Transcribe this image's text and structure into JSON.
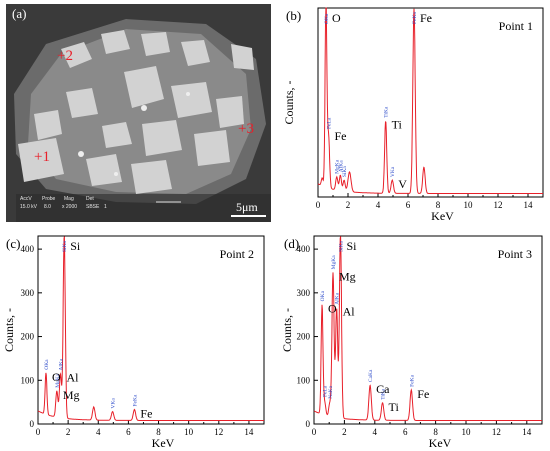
{
  "panel_a": {
    "label": "(a)",
    "markers": [
      "+2",
      "+3",
      "+1"
    ],
    "info": [
      "AccV",
      "Probe",
      "Mag",
      "Det",
      "15.0 kV",
      "8.0",
      "x 2000",
      "SBSE",
      "1"
    ],
    "scale_bar": "5μm",
    "colors": {
      "marker": "#e8202a",
      "background": "#3a3a3a"
    }
  },
  "chart_data": [
    {
      "type": "line",
      "panel_label": "(b)",
      "title": "Point 1",
      "xlabel": "KeV",
      "ylabel": "Counts, -",
      "xlim": [
        0,
        15
      ],
      "ylim": [
        0,
        430
      ],
      "xticks": [
        "0",
        "2",
        "4",
        "6",
        "8",
        "10",
        "12",
        "14"
      ],
      "yticks": [],
      "peaks": [
        {
          "x": 0.28,
          "y": 18,
          "w": 0.06
        },
        {
          "x": 0.53,
          "y": 420,
          "w": 0.06
        },
        {
          "x": 0.7,
          "y": 120,
          "w": 0.07
        },
        {
          "x": 1.25,
          "y": 30,
          "w": 0.07
        },
        {
          "x": 1.49,
          "y": 35,
          "w": 0.07
        },
        {
          "x": 1.74,
          "y": 25,
          "w": 0.07
        },
        {
          "x": 2.1,
          "y": 45,
          "w": 0.1
        },
        {
          "x": 4.51,
          "y": 165,
          "w": 0.07
        },
        {
          "x": 4.95,
          "y": 30,
          "w": 0.08
        },
        {
          "x": 6.4,
          "y": 420,
          "w": 0.08
        },
        {
          "x": 7.06,
          "y": 60,
          "w": 0.08
        }
      ],
      "line_labels": [
        {
          "text": "OKa",
          "x": 0.53
        },
        {
          "text": "FeLa",
          "x": 0.7
        },
        {
          "text": "MgKa",
          "x": 1.25
        },
        {
          "text": "AlKa",
          "x": 1.49
        },
        {
          "text": "SiKa",
          "x": 1.74
        },
        {
          "text": "TiKa",
          "x": 4.51
        },
        {
          "text": "VKa",
          "x": 4.95
        },
        {
          "text": "FeKa",
          "x": 6.4
        }
      ],
      "elements": [
        {
          "text": "O",
          "x": 0.53
        },
        {
          "text": "Fe",
          "x": 0.7
        },
        {
          "text": "Ti",
          "x": 4.51
        },
        {
          "text": "V",
          "x": 4.95
        },
        {
          "text": "Fe",
          "x": 6.4
        }
      ],
      "color": "#e8202a"
    },
    {
      "type": "line",
      "panel_label": "(c)",
      "title": "Point 2",
      "xlabel": "KeV",
      "ylabel": "Counts, -",
      "xlim": [
        0,
        15
      ],
      "ylim": [
        0,
        430
      ],
      "xticks": [
        "0",
        "2",
        "4",
        "6",
        "8",
        "10",
        "12",
        "14"
      ],
      "yticks": [
        "0",
        "100",
        "200",
        "300",
        "400"
      ],
      "peaks": [
        {
          "x": 0.53,
          "y": 95,
          "w": 0.06
        },
        {
          "x": 1.25,
          "y": 60,
          "w": 0.07
        },
        {
          "x": 1.49,
          "y": 100,
          "w": 0.07
        },
        {
          "x": 1.74,
          "y": 420,
          "w": 0.07
        },
        {
          "x": 3.7,
          "y": 30,
          "w": 0.08
        },
        {
          "x": 4.95,
          "y": 20,
          "w": 0.08
        },
        {
          "x": 6.4,
          "y": 25,
          "w": 0.08
        }
      ],
      "line_labels": [
        {
          "text": "OKa",
          "x": 0.53
        },
        {
          "text": "MgKa",
          "x": 1.25
        },
        {
          "text": "AlKa",
          "x": 1.49
        },
        {
          "text": "SiKa",
          "x": 1.74
        },
        {
          "text": "VKa",
          "x": 4.95
        },
        {
          "text": "FeKa",
          "x": 6.4
        }
      ],
      "elements": [
        {
          "text": "O",
          "x": 0.53
        },
        {
          "text": "Mg",
          "x": 1.25
        },
        {
          "text": "Al",
          "x": 1.49
        },
        {
          "text": "Si",
          "x": 1.74
        },
        {
          "text": "Fe",
          "x": 6.4
        }
      ],
      "color": "#e8202a"
    },
    {
      "type": "line",
      "panel_label": "(d)",
      "title": "Point 3",
      "xlabel": "KeV",
      "ylabel": "Counts, -",
      "xlim": [
        0,
        15
      ],
      "ylim": [
        0,
        430
      ],
      "xticks": [
        "0",
        "2",
        "4",
        "6",
        "8",
        "10",
        "12",
        "14"
      ],
      "yticks": [
        "0",
        "100",
        "200",
        "300",
        "400"
      ],
      "peaks": [
        {
          "x": 0.53,
          "y": 250,
          "w": 0.06
        },
        {
          "x": 0.7,
          "y": 30,
          "w": 0.07
        },
        {
          "x": 1.04,
          "y": 30,
          "w": 0.07
        },
        {
          "x": 1.25,
          "y": 330,
          "w": 0.07
        },
        {
          "x": 1.49,
          "y": 250,
          "w": 0.07
        },
        {
          "x": 1.74,
          "y": 420,
          "w": 0.07
        },
        {
          "x": 3.69,
          "y": 80,
          "w": 0.08
        },
        {
          "x": 4.51,
          "y": 40,
          "w": 0.08
        },
        {
          "x": 6.4,
          "y": 70,
          "w": 0.08
        }
      ],
      "line_labels": [
        {
          "text": "OKa",
          "x": 0.53
        },
        {
          "text": "FeLa",
          "x": 0.7
        },
        {
          "text": "NaKa",
          "x": 1.04
        },
        {
          "text": "MgKa",
          "x": 1.25
        },
        {
          "text": "AlKa",
          "x": 1.49
        },
        {
          "text": "SiKa",
          "x": 1.74
        },
        {
          "text": "CaKa",
          "x": 3.69
        },
        {
          "text": "TiKa",
          "x": 4.51
        },
        {
          "text": "FeKa",
          "x": 6.4
        }
      ],
      "elements": [
        {
          "text": "O",
          "x": 0.53
        },
        {
          "text": "Mg",
          "x": 1.25
        },
        {
          "text": "Al",
          "x": 1.49
        },
        {
          "text": "Si",
          "x": 1.74
        },
        {
          "text": "Ca",
          "x": 3.69
        },
        {
          "text": "Ti",
          "x": 4.51
        },
        {
          "text": "Fe",
          "x": 6.4
        }
      ],
      "color": "#e8202a"
    }
  ]
}
